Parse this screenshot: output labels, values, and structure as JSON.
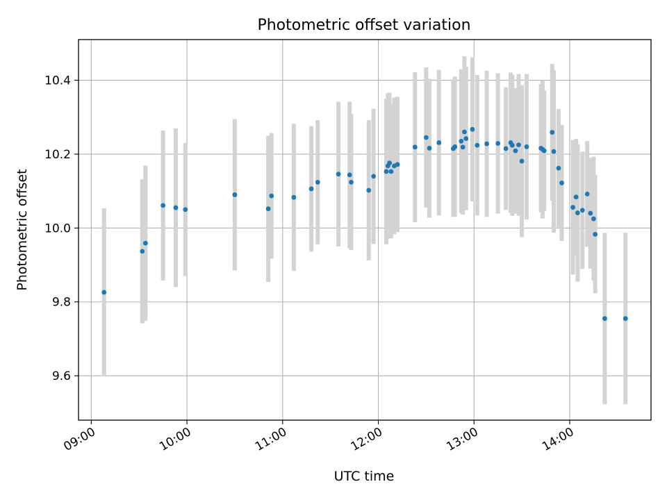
{
  "chart_data": {
    "type": "scatter",
    "title": "Photometric offset variation",
    "xlabel": "UTC time",
    "ylabel": "Photometric offset",
    "xlim": [
      "08:52",
      "14:51"
    ],
    "ylim": [
      9.48,
      10.51
    ],
    "x_ticks": [
      "09:00",
      "10:00",
      "11:00",
      "12:00",
      "13:00",
      "14:00"
    ],
    "y_ticks": [
      9.6,
      9.8,
      10.0,
      10.2,
      10.4
    ],
    "grid": true,
    "colors": {
      "points": "#1f77b4",
      "errorbars": "#d3d3d3",
      "grid": "#b0b0b0"
    },
    "series": [
      {
        "x": [
          "09:08",
          "09:32",
          "09:34",
          "09:45",
          "09:53",
          "09:59",
          "10:30",
          "10:51",
          "10:53",
          "11:07",
          "11:18",
          "11:22",
          "11:35",
          "11:42",
          "11:43",
          "11:54",
          "11:57",
          "12:05",
          "12:06",
          "12:07",
          "12:08",
          "12:10",
          "12:12",
          "12:23",
          "12:30",
          "12:32",
          "12:38",
          "12:47",
          "12:48",
          "12:52",
          "12:53",
          "12:54",
          "12:55",
          "12:59",
          "13:02",
          "13:08",
          "13:15",
          "13:20",
          "13:23",
          "13:24",
          "13:26",
          "13:28",
          "13:30",
          "13:33",
          "13:42",
          "13:43",
          "13:44",
          "13:49",
          "13:50",
          "13:53",
          "13:55",
          "14:02",
          "14:04",
          "14:05",
          "14:08",
          "14:11",
          "14:13",
          "14:15",
          "14:16",
          "14:22",
          "14:35"
        ],
        "y": [
          9.826,
          9.937,
          9.959,
          10.061,
          10.055,
          10.05,
          10.09,
          10.052,
          10.087,
          10.083,
          10.106,
          10.124,
          10.146,
          10.144,
          10.124,
          10.102,
          10.14,
          10.153,
          10.168,
          10.176,
          10.153,
          10.168,
          10.172,
          10.219,
          10.245,
          10.216,
          10.231,
          10.215,
          10.22,
          10.235,
          10.219,
          10.26,
          10.242,
          10.267,
          10.224,
          10.228,
          10.229,
          10.215,
          10.231,
          10.224,
          10.209,
          10.225,
          10.181,
          10.22,
          10.216,
          10.213,
          10.209,
          10.259,
          10.207,
          10.162,
          10.122,
          10.056,
          10.084,
          10.041,
          10.048,
          10.092,
          10.04,
          10.025,
          9.983,
          9.755,
          9.755
        ],
        "yerr": [
          0.227,
          0.195,
          0.21,
          0.203,
          0.215,
          0.18,
          0.205,
          0.198,
          0.17,
          0.199,
          0.17,
          0.168,
          0.196,
          0.198,
          0.184,
          0.19,
          0.183,
          0.197,
          0.197,
          0.19,
          0.181,
          0.185,
          0.183,
          0.203,
          0.19,
          0.188,
          0.197,
          0.185,
          0.19,
          0.195,
          0.183,
          0.205,
          0.194,
          0.195,
          0.19,
          0.198,
          0.19,
          0.166,
          0.19,
          0.191,
          0.17,
          0.192,
          0.206,
          0.197,
          0.174,
          0.187,
          0.163,
          0.185,
          0.22,
          0.16,
          0.157,
          0.182,
          0.157,
          0.186,
          0.159,
          0.143,
          0.15,
          0.168,
          0.16,
          0.232,
          0.232
        ]
      }
    ]
  }
}
